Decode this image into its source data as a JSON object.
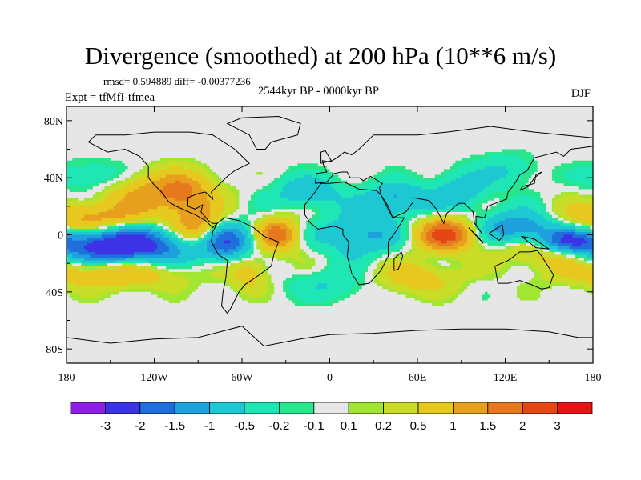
{
  "chart_data": {
    "type": "heatmap",
    "title": "Divergence (smoothed) at 200 hPa (10**6 m/s)",
    "stats_text": "rmsd= 0.594889 diff= -0.00377236",
    "experiment_label": "Expt = tfMfI-tfmea",
    "period_label": "2544kyr BP - 0000kyr BP",
    "season_label": "DJF",
    "x_tick_labels": [
      "180",
      "120W",
      "60W",
      "0",
      "60E",
      "120E",
      "180"
    ],
    "y_tick_labels": [
      "80N",
      "40N",
      "0",
      "40S",
      "80S"
    ],
    "xlim": [
      -180,
      180
    ],
    "ylim": [
      -90,
      90
    ],
    "colorbar": {
      "boundaries": [
        "-3",
        "-2",
        "-1.5",
        "-1",
        "-0.5",
        "-0.2",
        "-0.1",
        "0.1",
        "0.2",
        "0.5",
        "1",
        "1.5",
        "2",
        "3"
      ],
      "colors": [
        "#8c1ee6",
        "#3c32e6",
        "#1e6edc",
        "#1ea0dc",
        "#1ec8d2",
        "#1ee6b4",
        "#28e68c",
        "#e6e6e6",
        "#a0e632",
        "#c8dc28",
        "#e6c81e",
        "#e6a01e",
        "#e6781e",
        "#e64614",
        "#e61414"
      ]
    },
    "fields": [
      {
        "lon": -145,
        "lat": -8,
        "value": -3.0,
        "sx": 35,
        "sy": 11
      },
      {
        "lon": -160,
        "lat": 10,
        "value": 1.6,
        "sx": 30,
        "sy": 8
      },
      {
        "lon": -150,
        "lat": -25,
        "value": 1.6,
        "sx": 35,
        "sy": 8
      },
      {
        "lon": -120,
        "lat": 30,
        "value": 1.2,
        "sx": 25,
        "sy": 10
      },
      {
        "lon": -160,
        "lat": 40,
        "value": -0.6,
        "sx": 20,
        "sy": 8
      },
      {
        "lon": -70,
        "lat": -5,
        "value": -1.8,
        "sx": 13,
        "sy": 9
      },
      {
        "lon": -90,
        "lat": 5,
        "value": 1.6,
        "sx": 12,
        "sy": 10
      },
      {
        "lon": -55,
        "lat": -25,
        "value": 0.8,
        "sx": 10,
        "sy": 10
      },
      {
        "lon": -100,
        "lat": 30,
        "value": 0.9,
        "sx": 12,
        "sy": 10
      },
      {
        "lon": -35,
        "lat": 0,
        "value": 1.8,
        "sx": 10,
        "sy": 8
      },
      {
        "lon": -15,
        "lat": 30,
        "value": -1.0,
        "sx": 15,
        "sy": 8
      },
      {
        "lon": 20,
        "lat": 0,
        "value": -1.2,
        "sx": 18,
        "sy": 10
      },
      {
        "lon": 45,
        "lat": 25,
        "value": -1.2,
        "sx": 15,
        "sy": 8
      },
      {
        "lon": 80,
        "lat": 0,
        "value": 2.2,
        "sx": 14,
        "sy": 8
      },
      {
        "lon": 90,
        "lat": 30,
        "value": -0.8,
        "sx": 14,
        "sy": 10
      },
      {
        "lon": 130,
        "lat": 5,
        "value": -1.6,
        "sx": 18,
        "sy": 8
      },
      {
        "lon": 150,
        "lat": -10,
        "value": 1.4,
        "sx": 20,
        "sy": 8
      },
      {
        "lon": 160,
        "lat": -5,
        "value": -2.0,
        "sx": 14,
        "sy": 6
      },
      {
        "lon": 60,
        "lat": -30,
        "value": 0.8,
        "sx": 20,
        "sy": 8
      },
      {
        "lon": 0,
        "lat": -35,
        "value": -0.5,
        "sx": 20,
        "sy": 8
      },
      {
        "lon": 120,
        "lat": 45,
        "value": -0.5,
        "sx": 15,
        "sy": 8
      }
    ]
  }
}
